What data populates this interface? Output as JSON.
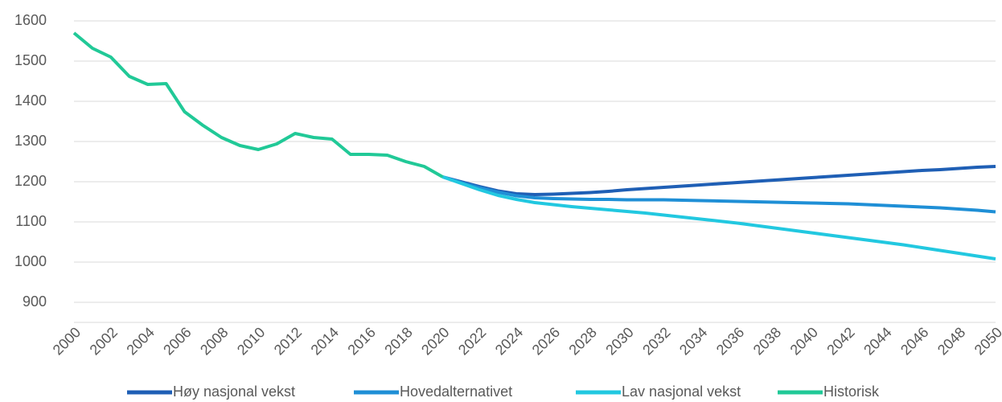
{
  "chart_data": {
    "type": "line",
    "x": [
      2000,
      2001,
      2002,
      2003,
      2004,
      2005,
      2006,
      2007,
      2008,
      2009,
      2010,
      2011,
      2012,
      2013,
      2014,
      2015,
      2016,
      2017,
      2018,
      2019,
      2020,
      2021,
      2022,
      2023,
      2024,
      2025,
      2026,
      2027,
      2028,
      2029,
      2030,
      2031,
      2032,
      2033,
      2034,
      2035,
      2036,
      2037,
      2038,
      2039,
      2040,
      2041,
      2042,
      2043,
      2044,
      2045,
      2046,
      2047,
      2048,
      2049,
      2050
    ],
    "series": [
      {
        "name": "Høy nasjonal vekst",
        "color": "#1f5fb5",
        "values": [
          null,
          null,
          null,
          null,
          null,
          null,
          null,
          null,
          null,
          null,
          null,
          null,
          null,
          null,
          null,
          null,
          null,
          null,
          null,
          null,
          1212,
          1200,
          1188,
          1177,
          1170,
          1168,
          1169,
          1171,
          1173,
          1176,
          1180,
          1183,
          1186,
          1189,
          1192,
          1195,
          1198,
          1201,
          1204,
          1207,
          1210,
          1213,
          1216,
          1219,
          1222,
          1225,
          1228,
          1230,
          1233,
          1236,
          1238
        ]
      },
      {
        "name": "Hovedalternativet",
        "color": "#1f8fd6",
        "values": [
          null,
          null,
          null,
          null,
          null,
          null,
          null,
          null,
          null,
          null,
          null,
          null,
          null,
          null,
          null,
          null,
          null,
          null,
          null,
          null,
          1212,
          1198,
          1185,
          1174,
          1165,
          1160,
          1158,
          1157,
          1156,
          1156,
          1155,
          1155,
          1155,
          1154,
          1153,
          1152,
          1151,
          1150,
          1149,
          1148,
          1147,
          1146,
          1145,
          1143,
          1141,
          1139,
          1137,
          1135,
          1132,
          1129,
          1125
        ]
      },
      {
        "name": "Lav nasjonal vekst",
        "color": "#22c8e0",
        "values": [
          null,
          null,
          null,
          null,
          null,
          null,
          null,
          null,
          null,
          null,
          null,
          null,
          null,
          null,
          null,
          null,
          null,
          null,
          null,
          null,
          1212,
          1196,
          1180,
          1166,
          1156,
          1148,
          1143,
          1138,
          1134,
          1130,
          1126,
          1122,
          1117,
          1112,
          1107,
          1102,
          1097,
          1091,
          1085,
          1079,
          1073,
          1067,
          1061,
          1055,
          1049,
          1043,
          1036,
          1029,
          1022,
          1015,
          1008
        ]
      },
      {
        "name": "Historisk",
        "color": "#21c997",
        "values": [
          1570,
          1532,
          1510,
          1462,
          1442,
          1444,
          1374,
          1340,
          1310,
          1290,
          1280,
          1294,
          1320,
          1310,
          1306,
          1268,
          1268,
          1266,
          1250,
          1238,
          1212,
          null,
          null,
          null,
          null,
          null,
          null,
          null,
          null,
          null,
          null,
          null,
          null,
          null,
          null,
          null,
          null,
          null,
          null,
          null,
          null,
          null,
          null,
          null,
          null,
          null,
          null,
          null,
          null,
          null,
          null
        ]
      }
    ],
    "xlim": [
      2000,
      2050
    ],
    "xticks": [
      2000,
      2002,
      2004,
      2006,
      2008,
      2010,
      2012,
      2014,
      2016,
      2018,
      2020,
      2022,
      2024,
      2026,
      2028,
      2030,
      2032,
      2034,
      2036,
      2038,
      2040,
      2042,
      2044,
      2046,
      2048,
      2050
    ],
    "ylim": [
      850,
      1600
    ],
    "yticks": [
      900,
      1000,
      1100,
      1200,
      1300,
      1400,
      1500,
      1600
    ],
    "grid": true,
    "legend": "bottom"
  }
}
